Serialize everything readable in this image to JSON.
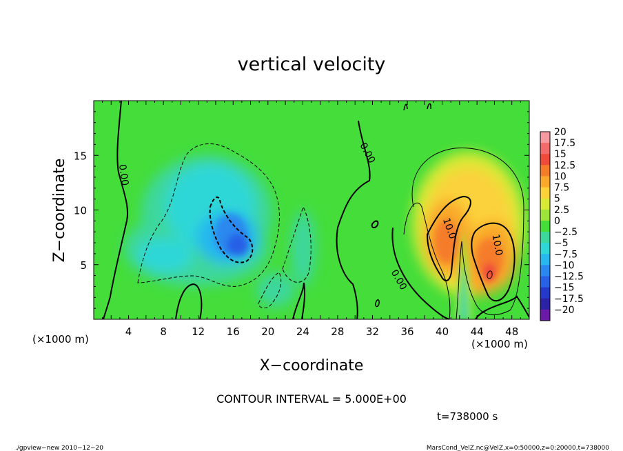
{
  "chart_data": {
    "type": "heatmap",
    "title": "vertical velocity",
    "xlabel": "X−coordinate",
    "ylabel": "Z−coordinate",
    "x_unit_label": "(×1000 m)",
    "y_unit_label": "(×1000 m)",
    "xlim": [
      0,
      50
    ],
    "ylim": [
      0,
      20
    ],
    "x_ticks": [
      {
        "value": 4,
        "label": "4"
      },
      {
        "value": 8,
        "label": "8"
      },
      {
        "value": 12,
        "label": "12"
      },
      {
        "value": 16,
        "label": "16"
      },
      {
        "value": 20,
        "label": "20"
      },
      {
        "value": 24,
        "label": "24"
      },
      {
        "value": 28,
        "label": "28"
      },
      {
        "value": 32,
        "label": "32"
      },
      {
        "value": 36,
        "label": "36"
      },
      {
        "value": 40,
        "label": "40"
      },
      {
        "value": 44,
        "label": "44"
      },
      {
        "value": 48,
        "label": "48"
      }
    ],
    "y_ticks": [
      {
        "value": 5,
        "label": "5"
      },
      {
        "value": 10,
        "label": "10"
      },
      {
        "value": 15,
        "label": "15"
      }
    ],
    "colorbar": {
      "levels": [
        20,
        17.5,
        15,
        12.5,
        10,
        7.5,
        5,
        2.5,
        0,
        -2.5,
        -5,
        -7.5,
        -10,
        -12.5,
        -15,
        -17.5,
        -20
      ],
      "labels": [
        "20",
        "17.5",
        "15",
        "12.5",
        "10",
        "7.5",
        "5",
        "2.5",
        "0",
        "−2.5",
        "−5",
        "−7.5",
        "−10",
        "−12.5",
        "−15",
        "−17.5",
        "−20"
      ],
      "colors": [
        "#f49aa0",
        "#f26a6a",
        "#f04b3a",
        "#f57d2a",
        "#f9a82b",
        "#fbd23a",
        "#d8ea36",
        "#9ce33a",
        "#44dd3a",
        "#3ed79c",
        "#2fd7d7",
        "#28b7ee",
        "#2a88ee",
        "#2860e6",
        "#2438c9",
        "#2c22a6",
        "#6a1aa6"
      ]
    },
    "contour_labels": [
      {
        "x": 3.4,
        "z": 13.2,
        "label": "0.00",
        "rotate": 82
      },
      {
        "x": 31.4,
        "z": 15.2,
        "label": "0.00",
        "rotate": 62
      },
      {
        "x": 35.0,
        "z": 3.6,
        "label": "0.00",
        "rotate": 60
      },
      {
        "x": 40.8,
        "z": 8.3,
        "label": "10.0",
        "rotate": 70
      },
      {
        "x": 46.3,
        "z": 6.8,
        "label": "10.0",
        "rotate": 80
      }
    ],
    "contour_interval_text": "CONTOUR INTERVAL = 5.000E+00",
    "time_text": "t=738000 s",
    "footer_left": "./gpview−new 2010−12−20",
    "footer_right": "MarsCond_VelZ.nc@VelZ,x=0:50000,z=0:20000,t=738000"
  }
}
